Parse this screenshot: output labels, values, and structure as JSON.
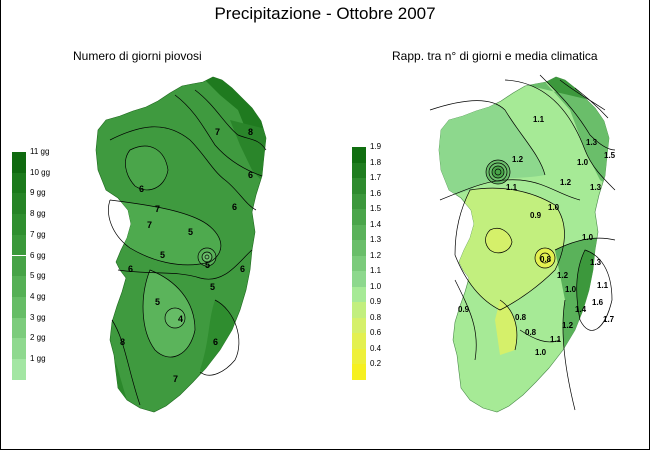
{
  "title": "Precipitazione - Ottobre 2007",
  "left_map": {
    "subtitle": "Numero di giorni piovosi",
    "legend": [
      "11 gg",
      "10 gg",
      "9 gg",
      "8 gg",
      "7 gg",
      "6 gg",
      "5 gg",
      "4 gg",
      "3 gg",
      "2 gg",
      "1 gg"
    ],
    "legend_colors": [
      "#0f6a0f",
      "#1b7a1b",
      "#268426",
      "#2f8f2f",
      "#3a993a",
      "#46a346",
      "#55b055",
      "#66bd66",
      "#7ccc7c",
      "#8fd98f",
      "#a3e6a3"
    ],
    "contour_labels": [
      "7",
      "8",
      "7",
      "6",
      "6",
      "6",
      "5",
      "5",
      "7",
      "6",
      "6",
      "8",
      "5",
      "4",
      "5",
      "5",
      "6",
      "7"
    ]
  },
  "right_map": {
    "subtitle": "Rapp. tra n° di giorni e media climatica",
    "legend": [
      "1.9",
      "1.8",
      "1.7",
      "1.6",
      "1.5",
      "1.4",
      "1.3",
      "1.2",
      "1.1",
      "1.0",
      "0.9",
      "0.8",
      "0.6",
      "0.4",
      "0.2"
    ],
    "legend_colors": [
      "#106e10",
      "#1f7d1f",
      "#2e8b2e",
      "#3c983c",
      "#4aa54a",
      "#5ab25a",
      "#6abe6a",
      "#7bcb7b",
      "#8dd88d",
      "#a6ea96",
      "#c2ef7e",
      "#d5f06a",
      "#e3f050",
      "#eef03a",
      "#f6f020"
    ],
    "contour_labels": [
      "1.1",
      "1.0",
      "1.3",
      "1.5",
      "1.2",
      "1.1",
      "1.3",
      "1.2",
      "1.0",
      "0.9",
      "1.0",
      "0.8",
      "1.3",
      "1.2",
      "1.0",
      "1.1",
      "0.9",
      "0.8",
      "0.8",
      "1.0",
      "1.1",
      "1.2",
      "1.4",
      "1.6",
      "1.7"
    ]
  }
}
